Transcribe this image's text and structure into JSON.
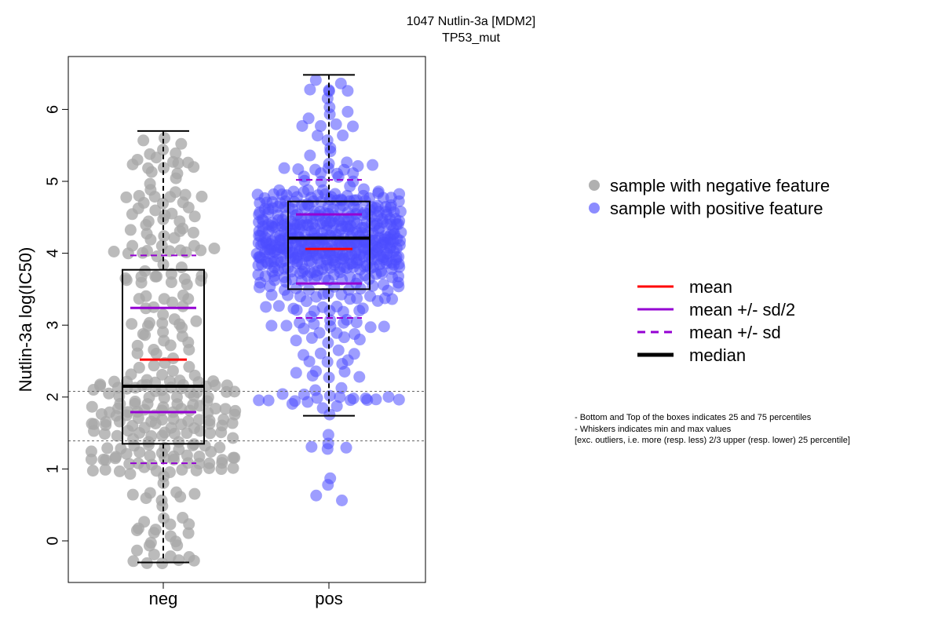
{
  "chart_data": {
    "type": "beeswarm-boxplot",
    "title": "1047 Nutlin-3a [MDM2]",
    "subtitle": "TP53_mut",
    "ylabel": "Nutlin-3a log(IC50)",
    "xlabel": "",
    "categories": [
      "neg",
      "pos"
    ],
    "ylim": [
      -0.55,
      6.75
    ],
    "yticks": [
      0,
      1,
      2,
      3,
      4,
      5,
      6
    ],
    "reference_lines": [
      1.39,
      2.08
    ],
    "groups": [
      {
        "name": "neg",
        "color": "#a8a8a8",
        "n_points": 300,
        "whisker_min": -0.3,
        "q1": 1.35,
        "median": 2.15,
        "q3": 3.77,
        "whisker_max": 5.7,
        "mean": 2.52,
        "mean_minus_half_sd": 1.79,
        "mean_plus_half_sd": 3.24,
        "mean_minus_sd": 1.08,
        "mean_plus_sd": 3.97
      },
      {
        "name": "pos",
        "color": "#4d4dff",
        "n_points": 560,
        "whisker_min": 1.74,
        "q1": 3.5,
        "median": 4.21,
        "q3": 4.72,
        "whisker_max": 6.48,
        "mean": 4.06,
        "mean_minus_half_sd": 3.58,
        "mean_plus_half_sd": 4.54,
        "mean_minus_sd": 3.1,
        "mean_plus_sd": 5.02,
        "outliers": [
          1.47,
          1.36,
          1.33,
          1.3,
          1.27,
          0.9,
          0.75,
          0.64,
          0.56
        ]
      }
    ],
    "legend_points": [
      {
        "label": "sample with negative feature",
        "color": "#b0b0b0"
      },
      {
        "label": "sample with positive feature",
        "color": "#8c8cff"
      }
    ],
    "legend_lines": [
      {
        "label": "mean",
        "color": "#ff0000",
        "style": "solid"
      },
      {
        "label": "mean +/- sd/2",
        "color": "#9400d3",
        "style": "solid"
      },
      {
        "label": "mean +/- sd",
        "color": "#9400d3",
        "style": "dashed"
      },
      {
        "label": "median",
        "color": "#000000",
        "style": "solid-thick"
      }
    ],
    "notes": [
      "- Bottom and Top of the boxes indicates 25 and 75 percentiles",
      "- Whiskers indicates min and max values",
      "[exc. outliers, i.e. more (resp. less) 2/3 upper (resp. lower) 25 percentile]"
    ],
    "grid": false,
    "legend_position": "right"
  }
}
